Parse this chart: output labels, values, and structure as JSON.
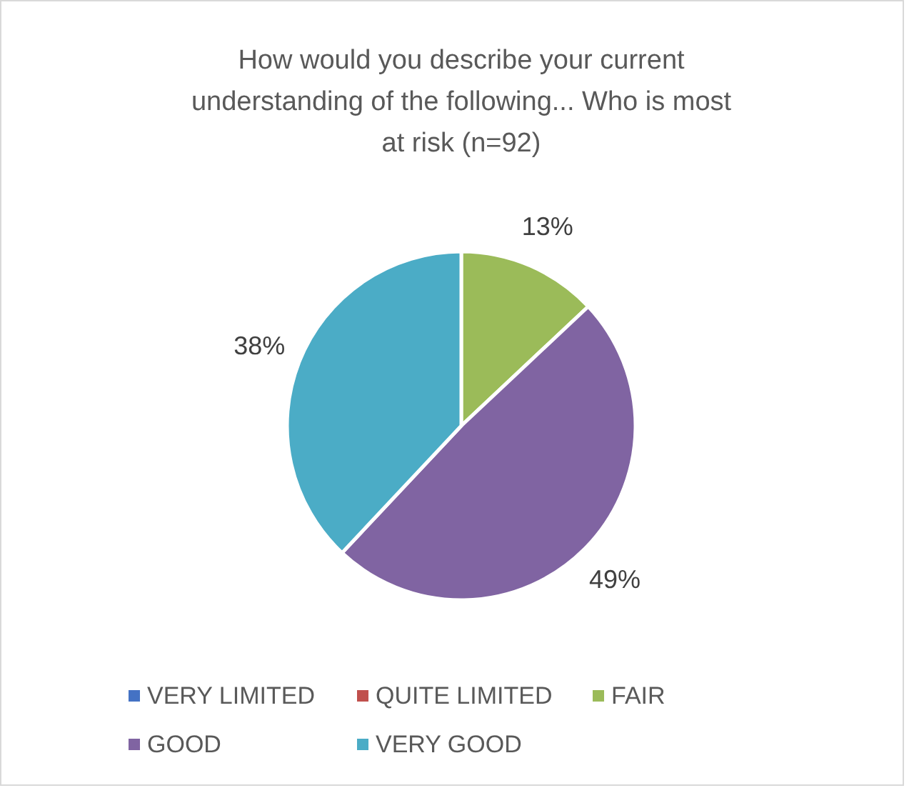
{
  "chart_data": {
    "type": "pie",
    "title": "How would you describe your current understanding of the following... Who is most at risk (n=92)",
    "categories": [
      "VERY LIMITED",
      "QUITE LIMITED",
      "FAIR",
      "GOOD",
      "VERY GOOD"
    ],
    "values": [
      0,
      0,
      13,
      49,
      38
    ],
    "colors": [
      "#4472c4",
      "#c0504d",
      "#9bbb59",
      "#8064a2",
      "#4bacc6"
    ],
    "value_labels": [
      null,
      null,
      "13%",
      "49%",
      "38%"
    ],
    "legend": "bottom"
  }
}
